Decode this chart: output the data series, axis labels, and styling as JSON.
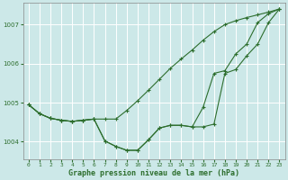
{
  "background_color": "#cce8e8",
  "grid_color": "#ffffff",
  "line_color": "#2d6e2d",
  "xlabel": "Graphe pression niveau de la mer (hPa)",
  "xlim": [
    -0.5,
    23.5
  ],
  "ylim": [
    1003.55,
    1007.55
  ],
  "yticks": [
    1004,
    1005,
    1006,
    1007
  ],
  "xticks": [
    0,
    1,
    2,
    3,
    4,
    5,
    6,
    7,
    8,
    9,
    10,
    11,
    12,
    13,
    14,
    15,
    16,
    17,
    18,
    19,
    20,
    21,
    22,
    23
  ],
  "line1": [
    1004.95,
    1004.72,
    1004.6,
    1004.55,
    1004.52,
    1004.55,
    1004.58,
    1004.58,
    1004.58,
    1004.8,
    1005.05,
    1005.32,
    1005.6,
    1005.88,
    1006.12,
    1006.35,
    1006.6,
    1006.82,
    1007.0,
    1007.1,
    1007.18,
    1007.25,
    1007.32,
    1007.4
  ],
  "line2": [
    1004.95,
    1004.72,
    1004.6,
    1004.55,
    1004.52,
    1004.55,
    1004.58,
    1004.02,
    1003.88,
    1003.78,
    1003.78,
    1004.05,
    1004.35,
    1004.42,
    1004.42,
    1004.38,
    1004.38,
    1004.45,
    1005.75,
    1005.85,
    1006.2,
    1006.5,
    1007.05,
    1007.4
  ],
  "line3": [
    1004.95,
    1004.72,
    1004.6,
    1004.55,
    1004.52,
    1004.55,
    1004.58,
    1004.02,
    1003.88,
    1003.78,
    1003.78,
    1004.05,
    1004.35,
    1004.42,
    1004.42,
    1004.38,
    1004.88,
    1005.75,
    1005.82,
    1006.25,
    1006.5,
    1007.05,
    1007.28,
    1007.4
  ],
  "tick_fontsize": 5,
  "xlabel_fontsize": 6,
  "ylabel_fontsize": 5
}
